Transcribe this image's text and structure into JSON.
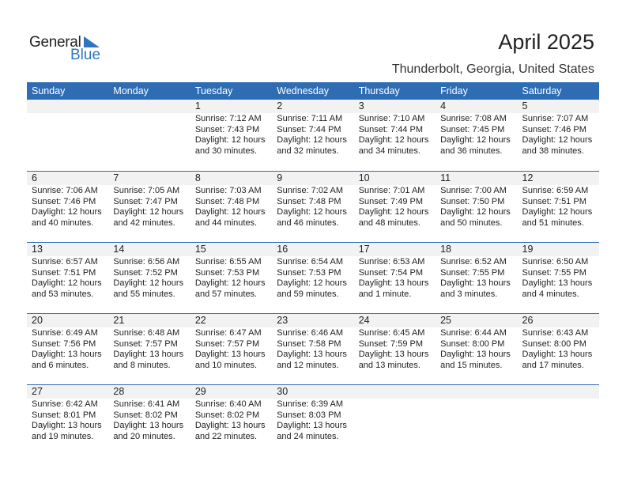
{
  "logo": {
    "text1": "General",
    "text2": "Blue"
  },
  "title": "April 2025",
  "location": "Thunderbolt, Georgia, United States",
  "colors": {
    "header": "#2E6DB4",
    "accent": "#2E75C0"
  },
  "weekdays": [
    "Sunday",
    "Monday",
    "Tuesday",
    "Wednesday",
    "Thursday",
    "Friday",
    "Saturday"
  ],
  "weeks": [
    [
      null,
      null,
      {
        "day": "1",
        "sunrise": "Sunrise: 7:12 AM",
        "sunset": "Sunset: 7:43 PM",
        "daylight": "Daylight: 12 hours",
        "minutes": "and 30 minutes."
      },
      {
        "day": "2",
        "sunrise": "Sunrise: 7:11 AM",
        "sunset": "Sunset: 7:44 PM",
        "daylight": "Daylight: 12 hours",
        "minutes": "and 32 minutes."
      },
      {
        "day": "3",
        "sunrise": "Sunrise: 7:10 AM",
        "sunset": "Sunset: 7:44 PM",
        "daylight": "Daylight: 12 hours",
        "minutes": "and 34 minutes."
      },
      {
        "day": "4",
        "sunrise": "Sunrise: 7:08 AM",
        "sunset": "Sunset: 7:45 PM",
        "daylight": "Daylight: 12 hours",
        "minutes": "and 36 minutes."
      },
      {
        "day": "5",
        "sunrise": "Sunrise: 7:07 AM",
        "sunset": "Sunset: 7:46 PM",
        "daylight": "Daylight: 12 hours",
        "minutes": "and 38 minutes."
      }
    ],
    [
      {
        "day": "6",
        "sunrise": "Sunrise: 7:06 AM",
        "sunset": "Sunset: 7:46 PM",
        "daylight": "Daylight: 12 hours",
        "minutes": "and 40 minutes."
      },
      {
        "day": "7",
        "sunrise": "Sunrise: 7:05 AM",
        "sunset": "Sunset: 7:47 PM",
        "daylight": "Daylight: 12 hours",
        "minutes": "and 42 minutes."
      },
      {
        "day": "8",
        "sunrise": "Sunrise: 7:03 AM",
        "sunset": "Sunset: 7:48 PM",
        "daylight": "Daylight: 12 hours",
        "minutes": "and 44 minutes."
      },
      {
        "day": "9",
        "sunrise": "Sunrise: 7:02 AM",
        "sunset": "Sunset: 7:48 PM",
        "daylight": "Daylight: 12 hours",
        "minutes": "and 46 minutes."
      },
      {
        "day": "10",
        "sunrise": "Sunrise: 7:01 AM",
        "sunset": "Sunset: 7:49 PM",
        "daylight": "Daylight: 12 hours",
        "minutes": "and 48 minutes."
      },
      {
        "day": "11",
        "sunrise": "Sunrise: 7:00 AM",
        "sunset": "Sunset: 7:50 PM",
        "daylight": "Daylight: 12 hours",
        "minutes": "and 50 minutes."
      },
      {
        "day": "12",
        "sunrise": "Sunrise: 6:59 AM",
        "sunset": "Sunset: 7:51 PM",
        "daylight": "Daylight: 12 hours",
        "minutes": "and 51 minutes."
      }
    ],
    [
      {
        "day": "13",
        "sunrise": "Sunrise: 6:57 AM",
        "sunset": "Sunset: 7:51 PM",
        "daylight": "Daylight: 12 hours",
        "minutes": "and 53 minutes."
      },
      {
        "day": "14",
        "sunrise": "Sunrise: 6:56 AM",
        "sunset": "Sunset: 7:52 PM",
        "daylight": "Daylight: 12 hours",
        "minutes": "and 55 minutes."
      },
      {
        "day": "15",
        "sunrise": "Sunrise: 6:55 AM",
        "sunset": "Sunset: 7:53 PM",
        "daylight": "Daylight: 12 hours",
        "minutes": "and 57 minutes."
      },
      {
        "day": "16",
        "sunrise": "Sunrise: 6:54 AM",
        "sunset": "Sunset: 7:53 PM",
        "daylight": "Daylight: 12 hours",
        "minutes": "and 59 minutes."
      },
      {
        "day": "17",
        "sunrise": "Sunrise: 6:53 AM",
        "sunset": "Sunset: 7:54 PM",
        "daylight": "Daylight: 13 hours",
        "minutes": "and 1 minute."
      },
      {
        "day": "18",
        "sunrise": "Sunrise: 6:52 AM",
        "sunset": "Sunset: 7:55 PM",
        "daylight": "Daylight: 13 hours",
        "minutes": "and 3 minutes."
      },
      {
        "day": "19",
        "sunrise": "Sunrise: 6:50 AM",
        "sunset": "Sunset: 7:55 PM",
        "daylight": "Daylight: 13 hours",
        "minutes": "and 4 minutes."
      }
    ],
    [
      {
        "day": "20",
        "sunrise": "Sunrise: 6:49 AM",
        "sunset": "Sunset: 7:56 PM",
        "daylight": "Daylight: 13 hours",
        "minutes": "and 6 minutes."
      },
      {
        "day": "21",
        "sunrise": "Sunrise: 6:48 AM",
        "sunset": "Sunset: 7:57 PM",
        "daylight": "Daylight: 13 hours",
        "minutes": "and 8 minutes."
      },
      {
        "day": "22",
        "sunrise": "Sunrise: 6:47 AM",
        "sunset": "Sunset: 7:57 PM",
        "daylight": "Daylight: 13 hours",
        "minutes": "and 10 minutes."
      },
      {
        "day": "23",
        "sunrise": "Sunrise: 6:46 AM",
        "sunset": "Sunset: 7:58 PM",
        "daylight": "Daylight: 13 hours",
        "minutes": "and 12 minutes."
      },
      {
        "day": "24",
        "sunrise": "Sunrise: 6:45 AM",
        "sunset": "Sunset: 7:59 PM",
        "daylight": "Daylight: 13 hours",
        "minutes": "and 13 minutes."
      },
      {
        "day": "25",
        "sunrise": "Sunrise: 6:44 AM",
        "sunset": "Sunset: 8:00 PM",
        "daylight": "Daylight: 13 hours",
        "minutes": "and 15 minutes."
      },
      {
        "day": "26",
        "sunrise": "Sunrise: 6:43 AM",
        "sunset": "Sunset: 8:00 PM",
        "daylight": "Daylight: 13 hours",
        "minutes": "and 17 minutes."
      }
    ],
    [
      {
        "day": "27",
        "sunrise": "Sunrise: 6:42 AM",
        "sunset": "Sunset: 8:01 PM",
        "daylight": "Daylight: 13 hours",
        "minutes": "and 19 minutes."
      },
      {
        "day": "28",
        "sunrise": "Sunrise: 6:41 AM",
        "sunset": "Sunset: 8:02 PM",
        "daylight": "Daylight: 13 hours",
        "minutes": "and 20 minutes."
      },
      {
        "day": "29",
        "sunrise": "Sunrise: 6:40 AM",
        "sunset": "Sunset: 8:02 PM",
        "daylight": "Daylight: 13 hours",
        "minutes": "and 22 minutes."
      },
      {
        "day": "30",
        "sunrise": "Sunrise: 6:39 AM",
        "sunset": "Sunset: 8:03 PM",
        "daylight": "Daylight: 13 hours",
        "minutes": "and 24 minutes."
      },
      null,
      null,
      null
    ]
  ]
}
